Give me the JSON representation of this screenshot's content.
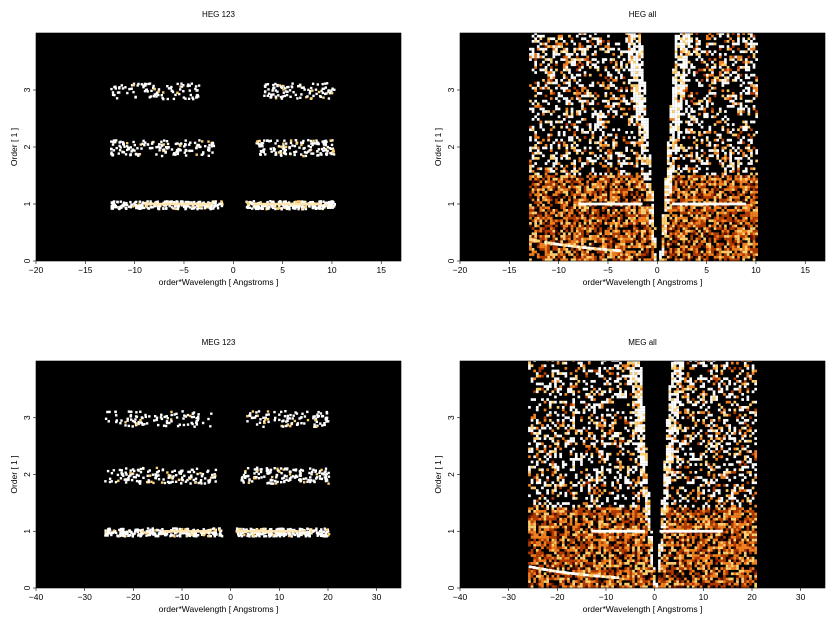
{
  "chart_data": [
    {
      "type": "heatmap",
      "title": "HEG 123",
      "xlabel": "order*Wavelength [ Angstroms ]",
      "ylabel": "Order [ 1 ]",
      "xlim": [
        -20,
        17
      ],
      "ylim": [
        0,
        4
      ],
      "xticks": [
        -20,
        -15,
        -10,
        -5,
        0,
        5,
        10,
        15
      ],
      "yticks": [
        0,
        1,
        2,
        3
      ],
      "background": "#000000",
      "colormap": [
        "#000000",
        "#5a0f00",
        "#b03a00",
        "#f08020",
        "#ffd070",
        "#ffffff"
      ],
      "mode": "orders",
      "bands": [
        {
          "order": 1,
          "ranges": [
            [
              -12.5,
              -1.2
            ],
            [
              1.2,
              10.2
            ]
          ],
          "density": "high",
          "bright": [
            [
              -9,
              -2
            ],
            [
              2,
              9
            ]
          ]
        },
        {
          "order": 2,
          "ranges": [
            [
              -12.5,
              -2.0
            ],
            [
              2.0,
              10.2
            ]
          ],
          "density": "medium",
          "bright": []
        },
        {
          "order": 3,
          "ranges": [
            [
              -12.5,
              -3.5
            ],
            [
              3.0,
              10.2
            ]
          ],
          "density": "low",
          "bright": []
        }
      ]
    },
    {
      "type": "heatmap",
      "title": "HEG all",
      "xlabel": "order*Wavelength [ Angstroms ]",
      "ylabel": "Order [ 1 ]",
      "xlim": [
        -20,
        17
      ],
      "ylim": [
        0,
        4
      ],
      "xticks": [
        -20,
        -15,
        -10,
        -5,
        0,
        5,
        10,
        15
      ],
      "yticks": [
        0,
        1,
        2,
        3
      ],
      "background": "#000000",
      "colormap": [
        "#000000",
        "#5a0f00",
        "#b03a00",
        "#f08020",
        "#ffd070",
        "#ffffff"
      ],
      "mode": "all",
      "data_range": [
        -13,
        10
      ],
      "wedge_tip": 0,
      "wedge_top_halfwidth": 2.2,
      "order1_line": [
        [
          -8,
          -1.5
        ],
        [
          1.5,
          9
        ]
      ],
      "dense_band_top": 1.5
    },
    {
      "type": "heatmap",
      "title": "MEG 123",
      "xlabel": "order*Wavelength [ Angstroms ]",
      "ylabel": "Order [ 1 ]",
      "xlim": [
        -40,
        35
      ],
      "ylim": [
        0,
        4
      ],
      "xticks": [
        -40,
        -30,
        -20,
        -10,
        0,
        10,
        20,
        30
      ],
      "yticks": [
        0,
        1,
        2,
        3
      ],
      "background": "#000000",
      "colormap": [
        "#000000",
        "#5a0f00",
        "#b03a00",
        "#f08020",
        "#ffd070",
        "#ffffff"
      ],
      "mode": "orders",
      "bands": [
        {
          "order": 1,
          "ranges": [
            [
              -26,
              -2
            ],
            [
              1,
              20
            ]
          ],
          "density": "high",
          "bright": [
            [
              -14,
              -4
            ],
            [
              1,
              14
            ]
          ]
        },
        {
          "order": 2,
          "ranges": [
            [
              -26,
              -3
            ],
            [
              2,
              20
            ]
          ],
          "density": "medium",
          "bright": []
        },
        {
          "order": 3,
          "ranges": [
            [
              -26,
              -4
            ],
            [
              3,
              20
            ]
          ],
          "density": "low",
          "bright": []
        }
      ]
    },
    {
      "type": "heatmap",
      "title": "MEG all",
      "xlabel": "order*Wavelength [ Angstroms ]",
      "ylabel": "Order [ 1 ]",
      "xlim": [
        -40,
        35
      ],
      "ylim": [
        0,
        4
      ],
      "xticks": [
        -40,
        -30,
        -20,
        -10,
        0,
        10,
        20,
        30
      ],
      "yticks": [
        0,
        1,
        2,
        3
      ],
      "background": "#000000",
      "colormap": [
        "#000000",
        "#5a0f00",
        "#b03a00",
        "#f08020",
        "#ffd070",
        "#ffffff"
      ],
      "mode": "all",
      "data_range": [
        -26,
        21
      ],
      "wedge_tip": 0,
      "wedge_top_halfwidth": 4.0,
      "order1_line": [
        [
          -13,
          -2
        ],
        [
          1,
          14
        ]
      ],
      "dense_band_top": 1.4
    }
  ]
}
